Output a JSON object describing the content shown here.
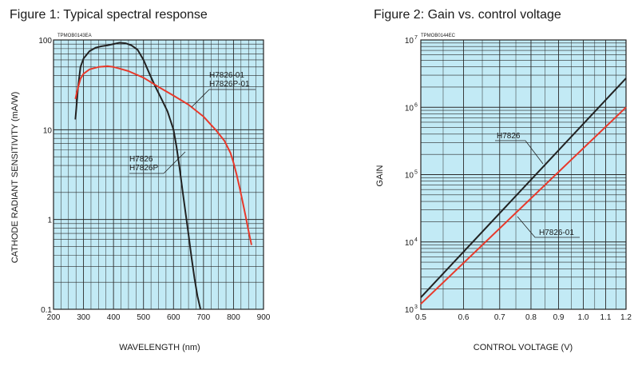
{
  "chart_data": [
    {
      "type": "line",
      "title": "Figure 1: Typical spectral response",
      "code": "TPMOB0143EA",
      "xlabel": "WAVELENGTH (nm)",
      "ylabel": "CATHODE RADIANT SENSITIVITY (mA/W)",
      "xlim": [
        200,
        900
      ],
      "ylim": [
        0.1,
        100
      ],
      "yscale": "log",
      "grid": true,
      "background_color": "#c2eaf5",
      "x_tick_labels": [
        "200",
        "300",
        "400",
        "500",
        "600",
        "700",
        "800",
        "900"
      ],
      "y_tick_labels": [
        "0.1",
        "1",
        "10",
        "100"
      ],
      "series": [
        {
          "color": "#222222",
          "annotation": [
            "H7826",
            "H7826P"
          ],
          "x": [
            273,
            282,
            290,
            300,
            320,
            340,
            360,
            380,
            400,
            420,
            440,
            460,
            480,
            500,
            520,
            540,
            560,
            580,
            600,
            610,
            620,
            630,
            640,
            650,
            660,
            670,
            680,
            690
          ],
          "y": [
            13,
            30,
            50,
            62,
            75,
            82,
            85,
            87,
            90,
            93,
            92,
            87,
            78,
            60,
            42,
            30,
            22,
            16,
            10,
            6.5,
            3.8,
            2.1,
            1.2,
            0.68,
            0.38,
            0.22,
            0.14,
            0.1
          ]
        },
        {
          "color": "#e8392b",
          "annotation": [
            "H7826-01",
            "H7826P-01"
          ],
          "x": [
            273,
            280,
            290,
            300,
            320,
            350,
            380,
            400,
            420,
            450,
            500,
            550,
            600,
            650,
            700,
            740,
            770,
            790,
            800,
            810,
            820,
            830,
            840,
            850,
            860
          ],
          "y": [
            22,
            28,
            37,
            42,
            47,
            50,
            51,
            50,
            48,
            45,
            38,
            30,
            24,
            19,
            14,
            10,
            7.5,
            5.5,
            4.3,
            3.2,
            2.3,
            1.6,
            1.1,
            0.75,
            0.52
          ]
        }
      ]
    },
    {
      "type": "line",
      "title": "Figure 2: Gain vs. control voltage",
      "code": "TPMOB0144EC",
      "xlabel": "CONTROL VOLTAGE (V)",
      "ylabel": "GAIN",
      "xlim": [
        0.5,
        1.2
      ],
      "ylim": [
        1000,
        10000000
      ],
      "xscale": "log",
      "yscale": "log",
      "grid": true,
      "background_color": "#c2eaf5",
      "x_tick_labels": [
        "0.5",
        "0.6",
        "0.7",
        "0.8",
        "0.9",
        "1.0",
        "1.1",
        "1.2"
      ],
      "x_tick_values": [
        0.5,
        0.6,
        0.7,
        0.8,
        0.9,
        1.0,
        1.1,
        1.2
      ],
      "y_tick_labels": [
        {
          "base": "10",
          "exp": "3"
        },
        {
          "base": "10",
          "exp": "4"
        },
        {
          "base": "10",
          "exp": "5"
        },
        {
          "base": "10",
          "exp": "6"
        },
        {
          "base": "10",
          "exp": "7"
        }
      ],
      "series": [
        {
          "color": "#222222",
          "annotation": [
            "H7826"
          ],
          "x": [
            0.5,
            1.2
          ],
          "y": [
            1500,
            2700000
          ]
        },
        {
          "color": "#e8392b",
          "annotation": [
            "H7826-01"
          ],
          "x": [
            0.5,
            1.2
          ],
          "y": [
            1200,
            1000000
          ]
        }
      ]
    }
  ]
}
